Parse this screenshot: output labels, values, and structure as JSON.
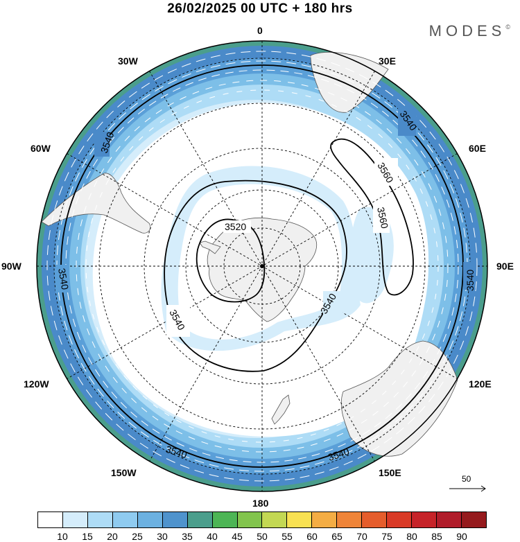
{
  "header": {
    "title": "26/02/2025  00 UTC  + 180 hrs",
    "logo": "MODES",
    "logo_mark": "©"
  },
  "map": {
    "projection": "south-polar-stereographic",
    "center": "South Pole",
    "longitude_labels": {
      "top": "0",
      "top_right": "30E",
      "right_upper": "60E",
      "right": "90E",
      "right_lower": "120E",
      "bottom_right": "150E",
      "bottom": "180",
      "bottom_left": "150W",
      "left_lower": "120W",
      "left": "90W",
      "left_upper": "60W",
      "top_left": "30W"
    },
    "contour_labels": [
      "3520",
      "3540",
      "3540",
      "3540",
      "3540",
      "3540",
      "3540",
      "3560",
      "3560"
    ],
    "colors": {
      "shade_15": "#d5edfb",
      "shade_20": "#aedcf6",
      "shade_25": "#7dbfe8",
      "shade_30": "#5a9fd8",
      "shade_35": "#4a8ac9",
      "shade_40": "#4b9e8c",
      "land": "#f0f0f0",
      "coast": "#555555",
      "contour": "#000000",
      "wind_arrows": "#ffffff"
    },
    "wind_reference": {
      "label": "50"
    }
  },
  "colorbar": {
    "colors": [
      "#ffffff",
      "#d5edfb",
      "#aedcf6",
      "#8fcbf0",
      "#6cb1e1",
      "#4f93cd",
      "#4b9e8c",
      "#4db555",
      "#82c44d",
      "#c3d853",
      "#f8e152",
      "#f4ad44",
      "#ef8438",
      "#e55d2c",
      "#d93a26",
      "#c62329",
      "#b01c2a",
      "#951a1d"
    ],
    "ticks": [
      "10",
      "15",
      "20",
      "25",
      "30",
      "35",
      "40",
      "45",
      "50",
      "55",
      "60",
      "65",
      "70",
      "75",
      "80",
      "85",
      "90"
    ]
  }
}
